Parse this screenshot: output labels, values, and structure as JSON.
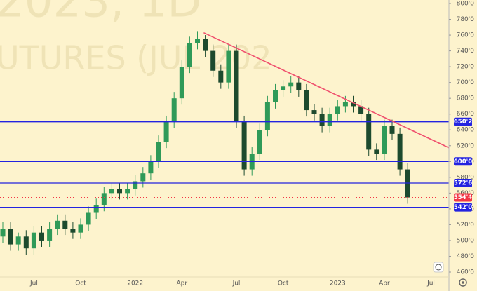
{
  "chart_data": {
    "type": "candlestick",
    "watermark": [
      "2023, 1D",
      "UTURES (JUL 202"
    ],
    "categories": [
      null,
      null,
      null,
      null,
      "Jul",
      null,
      null,
      null,
      null,
      null,
      "Oct",
      null,
      null,
      null,
      null,
      null,
      null,
      "2022",
      null,
      null,
      null,
      null,
      null,
      "Apr",
      null,
      null,
      null,
      null,
      null,
      null,
      "Jul",
      null,
      null,
      null,
      null,
      null,
      "Oct",
      null,
      null,
      null,
      null,
      null,
      null,
      "2023",
      null,
      null,
      null,
      null,
      null,
      "Apr",
      null,
      null,
      null,
      null,
      null,
      "Jul",
      null
    ],
    "open": [
      505,
      515,
      495,
      505,
      490,
      510,
      500,
      515,
      525,
      515,
      510,
      520,
      535,
      545,
      560,
      565,
      560,
      565,
      575,
      585,
      600,
      625,
      650,
      680,
      720,
      750,
      755,
      740,
      715,
      700,
      740,
      650,
      590,
      610,
      640,
      675,
      690,
      695,
      700,
      690,
      665,
      660,
      645,
      660,
      670,
      675,
      670,
      660,
      615,
      610,
      645,
      635,
      590,
      null,
      null,
      null,
      null
    ],
    "high": [
      523,
      523,
      510,
      513,
      518,
      518,
      523,
      533,
      533,
      523,
      528,
      543,
      553,
      568,
      573,
      573,
      573,
      583,
      593,
      608,
      633,
      658,
      688,
      728,
      758,
      765,
      760,
      748,
      723,
      748,
      748,
      658,
      618,
      648,
      683,
      698,
      703,
      708,
      708,
      698,
      673,
      668,
      668,
      678,
      683,
      683,
      678,
      668,
      623,
      653,
      653,
      643,
      598,
      null,
      null,
      null,
      null
    ],
    "low": [
      497,
      487,
      487,
      482,
      482,
      492,
      492,
      507,
      507,
      502,
      502,
      512,
      527,
      537,
      552,
      552,
      552,
      557,
      567,
      577,
      592,
      617,
      642,
      672,
      712,
      742,
      732,
      707,
      692,
      692,
      642,
      582,
      582,
      602,
      632,
      667,
      682,
      687,
      682,
      657,
      652,
      637,
      637,
      652,
      662,
      662,
      652,
      607,
      602,
      602,
      627,
      582,
      546.5,
      null,
      null,
      null,
      null
    ],
    "close": [
      515,
      495,
      505,
      490,
      510,
      500,
      515,
      525,
      515,
      510,
      520,
      535,
      545,
      560,
      565,
      560,
      565,
      575,
      585,
      600,
      625,
      650,
      680,
      720,
      750,
      755,
      740,
      715,
      700,
      740,
      650,
      590,
      610,
      640,
      675,
      690,
      695,
      700,
      690,
      665,
      660,
      645,
      660,
      670,
      675,
      670,
      660,
      615,
      610,
      645,
      635,
      590,
      554.5,
      null,
      null,
      null,
      null
    ],
    "up_color": "#2f9a58",
    "down_color": "#1d4a2e",
    "ylim": [
      460,
      800
    ],
    "yticks": [
      {
        "value": 460,
        "label": "460'0"
      },
      {
        "value": 480,
        "label": "480'0"
      },
      {
        "value": 500,
        "label": "500'0"
      },
      {
        "value": 520,
        "label": "520'0"
      },
      {
        "value": 540,
        "label": "540'0"
      },
      {
        "value": 560,
        "label": "560'0"
      },
      {
        "value": 580,
        "label": "580'0"
      },
      {
        "value": 600,
        "label": "600'0"
      },
      {
        "value": 620,
        "label": "620'0"
      },
      {
        "value": 640,
        "label": "640'0"
      },
      {
        "value": 660,
        "label": "660'0"
      },
      {
        "value": 680,
        "label": "680'0"
      },
      {
        "value": 700,
        "label": "700'0"
      },
      {
        "value": 720,
        "label": "720'0"
      },
      {
        "value": 740,
        "label": "740'0"
      },
      {
        "value": 760,
        "label": "760'0"
      },
      {
        "value": 780,
        "label": "780'0"
      },
      {
        "value": 800,
        "label": "800'0"
      }
    ],
    "levels": [
      {
        "value": 650.25,
        "label": "650'2"
      },
      {
        "value": 600,
        "label": "600'0"
      },
      {
        "value": 572.75,
        "label": "572'6"
      },
      {
        "value": 542,
        "label": "542'0"
      }
    ],
    "level_color": "#2323e0",
    "last_price": {
      "value": 554.5,
      "label": "554'4",
      "color": "#f23645"
    },
    "trend_line": {
      "color": "#f0506e",
      "x": [
        25.8,
        57.6
      ],
      "values": [
        763,
        616
      ]
    }
  }
}
